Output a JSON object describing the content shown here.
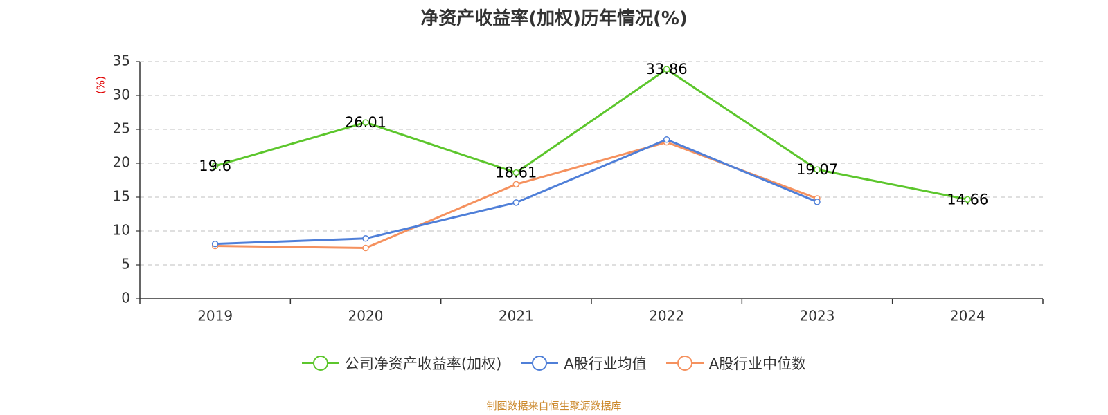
{
  "chart_data": {
    "type": "line",
    "title": "净资产收益率(加权)历年情况(%)",
    "ylabel": "(%)",
    "ylim": [
      0,
      35
    ],
    "yticks": [
      0,
      5,
      10,
      15,
      20,
      25,
      30,
      35
    ],
    "categories": [
      "2019",
      "2020",
      "2021",
      "2022",
      "2023",
      "2024"
    ],
    "grid": true,
    "legend_position": "bottom",
    "series": [
      {
        "name": "公司净资产收益率(加权)",
        "color": "#5cc62c",
        "values": [
          19.6,
          26.01,
          18.61,
          33.86,
          19.07,
          14.66
        ],
        "data_labels": [
          "19.6",
          "26.01",
          "18.61",
          "33.86",
          "19.07",
          "14.66"
        ]
      },
      {
        "name": "A股行业均值",
        "color": "#4f7fd8",
        "values": [
          8.1,
          8.9,
          14.2,
          23.5,
          14.3,
          null
        ]
      },
      {
        "name": "A股行业中位数",
        "color": "#f5915e",
        "values": [
          7.8,
          7.5,
          16.9,
          23.1,
          14.8,
          null
        ]
      }
    ]
  },
  "source_note": "制图数据来自恒生聚源数据库"
}
